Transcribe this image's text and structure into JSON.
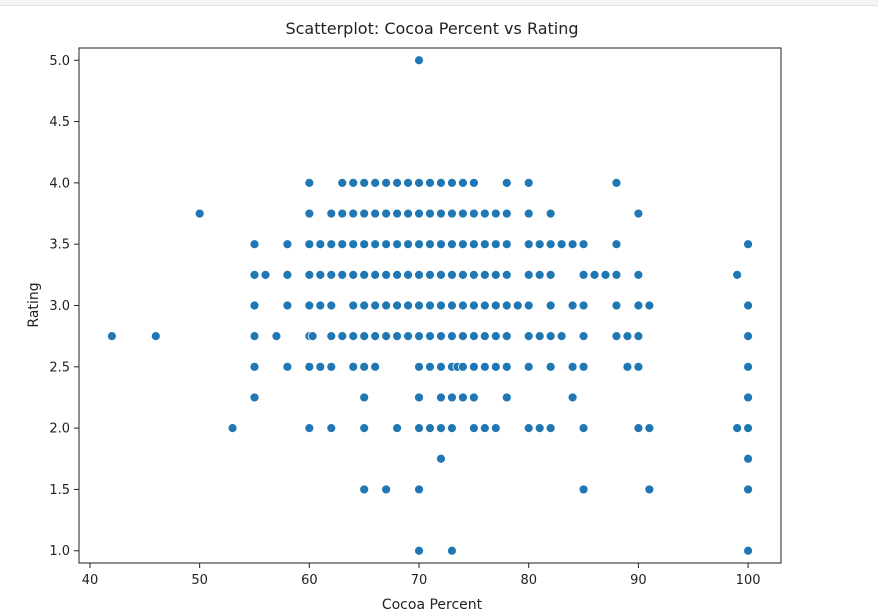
{
  "chart_data": {
    "type": "scatter",
    "title": "Scatterplot: Cocoa Percent vs Rating",
    "xlabel": "Cocoa Percent",
    "ylabel": "Rating",
    "xlim": [
      39,
      103
    ],
    "ylim": [
      0.9,
      5.1
    ],
    "x_ticks": [
      40,
      50,
      60,
      70,
      80,
      90,
      100
    ],
    "x_tick_labels": [
      "40",
      "50",
      "60",
      "70",
      "80",
      "90",
      "100"
    ],
    "y_ticks": [
      1.0,
      1.5,
      2.0,
      2.5,
      3.0,
      3.5,
      4.0,
      4.5,
      5.0
    ],
    "y_tick_labels": [
      "1.0",
      "1.5",
      "2.0",
      "2.5",
      "3.0",
      "3.5",
      "4.0",
      "4.5",
      "5.0"
    ],
    "grid": false,
    "marker_color": "#1f77b4",
    "series": [
      {
        "points": [
          [
            70,
            5.0
          ],
          [
            60,
            4.0
          ],
          [
            63,
            4.0
          ],
          [
            64,
            4.0
          ],
          [
            65,
            4.0
          ],
          [
            66,
            4.0
          ],
          [
            67,
            4.0
          ],
          [
            68,
            4.0
          ],
          [
            69,
            4.0
          ],
          [
            70,
            4.0
          ],
          [
            71,
            4.0
          ],
          [
            72,
            4.0
          ],
          [
            73,
            4.0
          ],
          [
            74,
            4.0
          ],
          [
            75,
            4.0
          ],
          [
            78,
            4.0
          ],
          [
            80,
            4.0
          ],
          [
            88,
            4.0
          ],
          [
            50,
            3.75
          ],
          [
            60,
            3.75
          ],
          [
            62,
            3.75
          ],
          [
            63,
            3.75
          ],
          [
            64,
            3.75
          ],
          [
            65,
            3.75
          ],
          [
            66,
            3.75
          ],
          [
            67,
            3.75
          ],
          [
            68,
            3.75
          ],
          [
            69,
            3.75
          ],
          [
            70,
            3.75
          ],
          [
            71,
            3.75
          ],
          [
            72,
            3.75
          ],
          [
            73,
            3.75
          ],
          [
            74,
            3.75
          ],
          [
            75,
            3.75
          ],
          [
            76,
            3.75
          ],
          [
            77,
            3.75
          ],
          [
            78,
            3.75
          ],
          [
            80,
            3.75
          ],
          [
            82,
            3.75
          ],
          [
            90,
            3.75
          ],
          [
            55,
            3.5
          ],
          [
            58,
            3.5
          ],
          [
            60,
            3.5
          ],
          [
            61,
            3.5
          ],
          [
            62,
            3.5
          ],
          [
            63,
            3.5
          ],
          [
            64,
            3.5
          ],
          [
            65,
            3.5
          ],
          [
            66,
            3.5
          ],
          [
            67,
            3.5
          ],
          [
            68,
            3.5
          ],
          [
            69,
            3.5
          ],
          [
            70,
            3.5
          ],
          [
            71,
            3.5
          ],
          [
            72,
            3.5
          ],
          [
            73,
            3.5
          ],
          [
            74,
            3.5
          ],
          [
            75,
            3.5
          ],
          [
            76,
            3.5
          ],
          [
            77,
            3.5
          ],
          [
            78,
            3.5
          ],
          [
            80,
            3.5
          ],
          [
            81,
            3.5
          ],
          [
            82,
            3.5
          ],
          [
            83,
            3.5
          ],
          [
            84,
            3.5
          ],
          [
            85,
            3.5
          ],
          [
            88,
            3.5
          ],
          [
            100,
            3.5
          ],
          [
            55,
            3.25
          ],
          [
            56,
            3.25
          ],
          [
            58,
            3.25
          ],
          [
            60,
            3.25
          ],
          [
            61,
            3.25
          ],
          [
            62,
            3.25
          ],
          [
            63,
            3.25
          ],
          [
            64,
            3.25
          ],
          [
            65,
            3.25
          ],
          [
            66,
            3.25
          ],
          [
            67,
            3.25
          ],
          [
            68,
            3.25
          ],
          [
            69,
            3.25
          ],
          [
            70,
            3.25
          ],
          [
            71,
            3.25
          ],
          [
            72,
            3.25
          ],
          [
            73,
            3.25
          ],
          [
            74,
            3.25
          ],
          [
            75,
            3.25
          ],
          [
            76,
            3.25
          ],
          [
            77,
            3.25
          ],
          [
            78,
            3.25
          ],
          [
            80,
            3.25
          ],
          [
            81,
            3.25
          ],
          [
            82,
            3.25
          ],
          [
            85,
            3.25
          ],
          [
            86,
            3.25
          ],
          [
            87,
            3.25
          ],
          [
            88,
            3.25
          ],
          [
            90,
            3.25
          ],
          [
            99,
            3.25
          ],
          [
            55,
            3.0
          ],
          [
            58,
            3.0
          ],
          [
            60,
            3.0
          ],
          [
            61,
            3.0
          ],
          [
            62,
            3.0
          ],
          [
            64,
            3.0
          ],
          [
            65,
            3.0
          ],
          [
            66,
            3.0
          ],
          [
            67,
            3.0
          ],
          [
            68,
            3.0
          ],
          [
            69,
            3.0
          ],
          [
            70,
            3.0
          ],
          [
            71,
            3.0
          ],
          [
            72,
            3.0
          ],
          [
            73,
            3.0
          ],
          [
            74,
            3.0
          ],
          [
            75,
            3.0
          ],
          [
            76,
            3.0
          ],
          [
            77,
            3.0
          ],
          [
            78,
            3.0
          ],
          [
            79,
            3.0
          ],
          [
            80,
            3.0
          ],
          [
            82,
            3.0
          ],
          [
            84,
            3.0
          ],
          [
            85,
            3.0
          ],
          [
            88,
            3.0
          ],
          [
            90,
            3.0
          ],
          [
            91,
            3.0
          ],
          [
            100,
            3.0
          ],
          [
            42,
            2.75
          ],
          [
            46,
            2.75
          ],
          [
            55,
            2.75
          ],
          [
            57,
            2.75
          ],
          [
            60,
            2.75
          ],
          [
            60.3,
            2.75
          ],
          [
            62,
            2.75
          ],
          [
            63,
            2.75
          ],
          [
            64,
            2.75
          ],
          [
            65,
            2.75
          ],
          [
            66,
            2.75
          ],
          [
            67,
            2.75
          ],
          [
            68,
            2.75
          ],
          [
            69,
            2.75
          ],
          [
            70,
            2.75
          ],
          [
            71,
            2.75
          ],
          [
            72,
            2.75
          ],
          [
            73,
            2.75
          ],
          [
            74,
            2.75
          ],
          [
            75,
            2.75
          ],
          [
            76,
            2.75
          ],
          [
            77,
            2.75
          ],
          [
            78,
            2.75
          ],
          [
            80,
            2.75
          ],
          [
            81,
            2.75
          ],
          [
            82,
            2.75
          ],
          [
            83,
            2.75
          ],
          [
            85,
            2.75
          ],
          [
            88,
            2.75
          ],
          [
            89,
            2.75
          ],
          [
            90,
            2.75
          ],
          [
            100,
            2.75
          ],
          [
            55,
            2.5
          ],
          [
            58,
            2.5
          ],
          [
            60,
            2.5
          ],
          [
            61,
            2.5
          ],
          [
            62,
            2.5
          ],
          [
            64,
            2.5
          ],
          [
            65,
            2.5
          ],
          [
            66,
            2.5
          ],
          [
            70,
            2.5
          ],
          [
            71,
            2.5
          ],
          [
            72,
            2.5
          ],
          [
            73,
            2.5
          ],
          [
            73.5,
            2.5
          ],
          [
            74,
            2.5
          ],
          [
            75,
            2.5
          ],
          [
            76,
            2.5
          ],
          [
            77,
            2.5
          ],
          [
            78,
            2.5
          ],
          [
            80,
            2.5
          ],
          [
            82,
            2.5
          ],
          [
            84,
            2.5
          ],
          [
            85,
            2.5
          ],
          [
            89,
            2.5
          ],
          [
            90,
            2.5
          ],
          [
            100,
            2.5
          ],
          [
            55,
            2.25
          ],
          [
            65,
            2.25
          ],
          [
            70,
            2.25
          ],
          [
            72,
            2.25
          ],
          [
            73,
            2.25
          ],
          [
            74,
            2.25
          ],
          [
            75,
            2.25
          ],
          [
            78,
            2.25
          ],
          [
            84,
            2.25
          ],
          [
            100,
            2.25
          ],
          [
            53,
            2.0
          ],
          [
            60,
            2.0
          ],
          [
            62,
            2.0
          ],
          [
            65,
            2.0
          ],
          [
            68,
            2.0
          ],
          [
            70,
            2.0
          ],
          [
            71,
            2.0
          ],
          [
            72,
            2.0
          ],
          [
            73,
            2.0
          ],
          [
            75,
            2.0
          ],
          [
            76,
            2.0
          ],
          [
            77,
            2.0
          ],
          [
            80,
            2.0
          ],
          [
            81,
            2.0
          ],
          [
            82,
            2.0
          ],
          [
            85,
            2.0
          ],
          [
            90,
            2.0
          ],
          [
            91,
            2.0
          ],
          [
            99,
            2.0
          ],
          [
            100,
            2.0
          ],
          [
            72,
            1.75
          ],
          [
            100,
            1.75
          ],
          [
            65,
            1.5
          ],
          [
            67,
            1.5
          ],
          [
            70,
            1.5
          ],
          [
            85,
            1.5
          ],
          [
            91,
            1.5
          ],
          [
            100,
            1.5
          ],
          [
            70,
            1.0
          ],
          [
            73,
            1.0
          ],
          [
            100,
            1.0
          ]
        ]
      }
    ]
  }
}
